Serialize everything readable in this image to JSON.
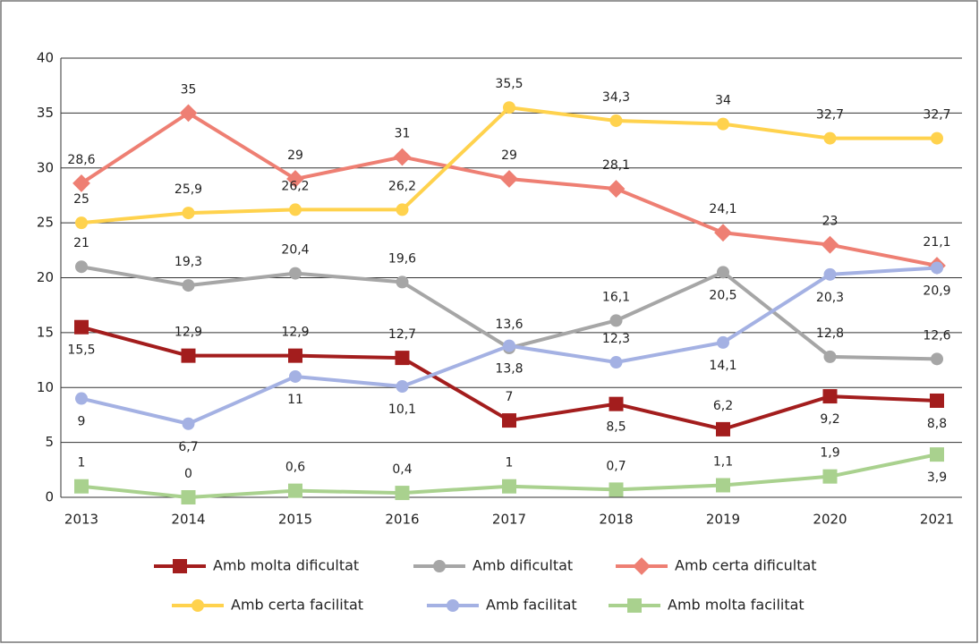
{
  "chart_data": {
    "type": "line",
    "categories": [
      "2013",
      "2014",
      "2015",
      "2016",
      "2017",
      "2018",
      "2019",
      "2020",
      "2021"
    ],
    "ylim": [
      0,
      40
    ],
    "yticks": [
      0,
      5,
      10,
      15,
      20,
      25,
      30,
      35,
      40
    ],
    "grid": true,
    "legend": "bottom",
    "series": [
      {
        "name": "Amb molta dificultat",
        "color": "#a31d1d",
        "marker": "square",
        "values": [
          15.5,
          12.9,
          12.9,
          12.7,
          7,
          8.5,
          6.2,
          9.2,
          8.8
        ],
        "value_labels": [
          "15,5",
          "12,9",
          "12,9",
          "12,7",
          "7",
          "8,5",
          "6,2",
          "9,2",
          "8,8"
        ]
      },
      {
        "name": "Amb dificultat",
        "color": "#a6a6a6",
        "marker": "circle",
        "values": [
          21,
          19.3,
          20.4,
          19.6,
          13.6,
          16.1,
          20.5,
          12.8,
          12.6
        ],
        "value_labels": [
          "21",
          "19,3",
          "20,4",
          "19,6",
          "13,6",
          "16,1",
          "20,5",
          "12,8",
          "12,6"
        ]
      },
      {
        "name": "Amb certa dificultat",
        "color": "#ee7f73",
        "marker": "diamond",
        "values": [
          28.6,
          35,
          29,
          31,
          29,
          28.1,
          24.1,
          23,
          21.1
        ],
        "value_labels": [
          "28,6",
          "35",
          "29",
          "31",
          "29",
          "28,1",
          "24,1",
          "23",
          "21,1"
        ]
      },
      {
        "name": "Amb certa facilitat",
        "color": "#ffd24d",
        "marker": "circle",
        "values": [
          25,
          25.9,
          26.2,
          26.2,
          35.5,
          34.3,
          34,
          32.7,
          32.7
        ],
        "value_labels": [
          "25",
          "25,9",
          "26,2",
          "26,2",
          "35,5",
          "34,3",
          "34",
          "32,7",
          "32,7"
        ]
      },
      {
        "name": "Amb facilitat",
        "color": "#a4b1e3",
        "marker": "circle",
        "values": [
          9,
          6.7,
          11,
          10.1,
          13.8,
          12.3,
          14.1,
          20.3,
          20.9
        ],
        "value_labels": [
          "9",
          "6,7",
          "11",
          "10,1",
          "13,8",
          "12,3",
          "14,1",
          "20,3",
          "20,9"
        ]
      },
      {
        "name": "Amb molta facilitat",
        "color": "#a9d18e",
        "marker": "square",
        "values": [
          1,
          0,
          0.6,
          0.4,
          1,
          0.7,
          1.1,
          1.9,
          3.9
        ],
        "value_labels": [
          "1",
          "0",
          "0,6",
          "0,4",
          "1",
          "0,7",
          "1,1",
          "1,9",
          "3,9"
        ]
      }
    ]
  }
}
